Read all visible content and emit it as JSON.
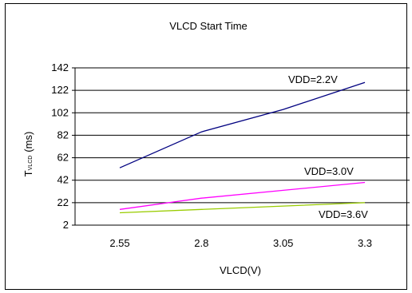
{
  "chart_data": {
    "type": "line",
    "title": "VLCD Start Time",
    "xlabel": "VLCD(V)",
    "ylabel_main": "T",
    "ylabel_sub": "VLCD",
    "ylabel_unit": "(ms)",
    "x": [
      2.55,
      2.8,
      3.05,
      3.3
    ],
    "x_tick_labels": [
      "2.55",
      "2.8",
      "3.05",
      "3.3"
    ],
    "y_ticks": [
      2,
      22,
      42,
      62,
      82,
      102,
      122,
      142
    ],
    "ylim": [
      2,
      142
    ],
    "grid": "horizontal",
    "legend": "inline-labels",
    "series": [
      {
        "name": "VDD=2.2V",
        "color": "#000080",
        "values": [
          53,
          85,
          105,
          129
        ]
      },
      {
        "name": "VDD=3.0V",
        "color": "#ff00ff",
        "values": [
          16,
          26,
          33,
          40
        ]
      },
      {
        "name": "VDD=3.6V",
        "color": "#99cc00",
        "values": [
          13,
          16,
          19,
          22
        ]
      }
    ]
  }
}
